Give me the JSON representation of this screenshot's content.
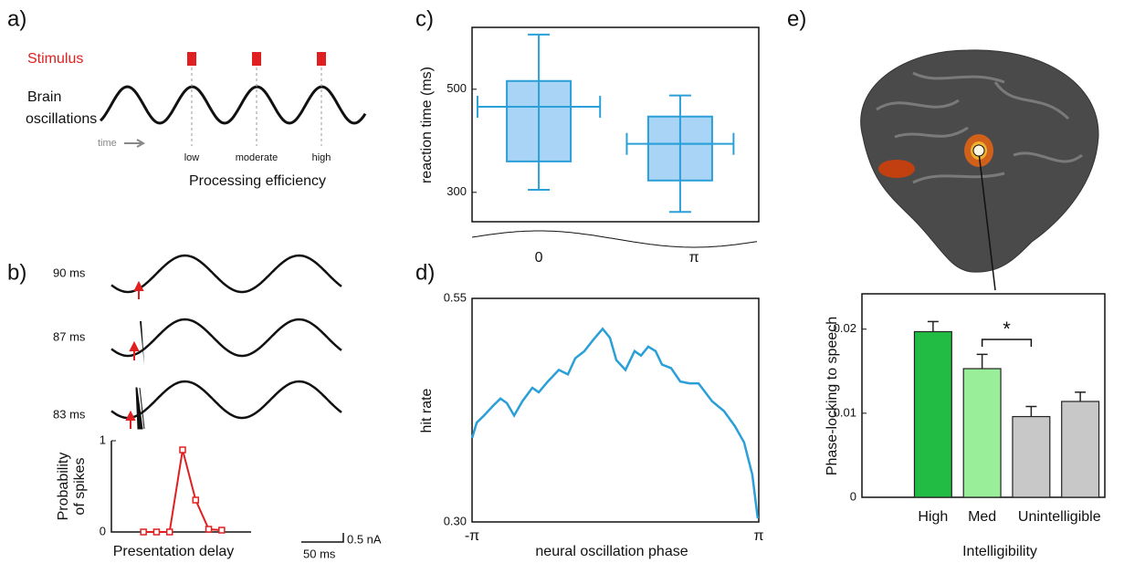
{
  "panel_labels": [
    "a)",
    "b)",
    "c)",
    "d)",
    "e)"
  ],
  "panel_a": {
    "stimulus": "Stimulus",
    "brain": "Brain",
    "oscillations": "oscillations",
    "time": "time",
    "levels": [
      "low",
      "moderate",
      "high"
    ],
    "xlabel": "Processing efficiency"
  },
  "panel_b": {
    "delays": [
      "90 ms",
      "87 ms",
      "83 ms"
    ],
    "scale_x": "50 ms",
    "scale_y": "0.5 nA"
  },
  "chart_data": [
    {
      "type": "line",
      "ylabel": [
        "Probability",
        "of spikes"
      ],
      "xlabel": "Presentation delay",
      "categories": [
        null,
        null,
        null,
        null,
        null,
        null,
        null
      ],
      "values": [
        0,
        0,
        0,
        0.9,
        0.35,
        0.03,
        0.02
      ],
      "ylim": [
        0,
        1
      ],
      "yticks": [
        0,
        1
      ],
      "color": "#e02020",
      "markers": true
    },
    {
      "type": "box",
      "ylabel": "reaction time (ms)",
      "ylim": [
        243,
        620
      ],
      "yticks": [
        300,
        500
      ],
      "xlim": [
        -1.35,
        4.45
      ],
      "xticks": [
        0,
        {
          "value": 3.14159,
          "label": "π"
        }
      ],
      "color": "#2a9fd8",
      "fill": "#a9d4f5",
      "boxes": [
        {
          "x": 0,
          "x_err": 1.24,
          "median": 466,
          "q1": 360,
          "q3": 516,
          "whislo": 305,
          "whishi": 606
        },
        {
          "x": 2.86,
          "x_err": 1.08,
          "median": 394,
          "q1": 323,
          "q3": 447,
          "whislo": 262,
          "whishi": 488
        }
      ]
    },
    {
      "type": "line",
      "ylabel": "hit rate",
      "xlabel": "neural oscillation phase",
      "color": "#2a9fd8",
      "xlim": [
        -3.14159,
        3.14159
      ],
      "xticks": [
        {
          "value": -3.14159,
          "label": "-π"
        },
        {
          "value": 3.14159,
          "label": "π"
        }
      ],
      "ylim": [
        0.3,
        0.55
      ],
      "yticks": [
        {
          "value": 0.3,
          "label": "0.30"
        },
        0.55
      ],
      "x": [
        -3.14,
        -3.04,
        -2.88,
        -2.68,
        -2.52,
        -2.38,
        -2.22,
        -2.04,
        -1.82,
        -1.68,
        -1.48,
        -1.24,
        -1.04,
        -0.88,
        -0.68,
        -0.48,
        -0.28,
        -0.12,
        0.02,
        0.22,
        0.42,
        0.56,
        0.72,
        0.88,
        1.02,
        1.22,
        1.42,
        1.62,
        1.82,
        2.12,
        2.38,
        2.62,
        2.82,
        3.0,
        3.1,
        3.12
      ],
      "values": [
        0.394,
        0.411,
        0.419,
        0.43,
        0.438,
        0.433,
        0.419,
        0.435,
        0.45,
        0.445,
        0.457,
        0.47,
        0.465,
        0.483,
        0.491,
        0.504,
        0.516,
        0.506,
        0.481,
        0.47,
        0.491,
        0.486,
        0.496,
        0.491,
        0.476,
        0.472,
        0.457,
        0.455,
        0.455,
        0.435,
        0.424,
        0.407,
        0.389,
        0.353,
        0.312,
        0.304
      ]
    },
    {
      "type": "bar",
      "ylabel": "Phase-locking to speech",
      "xlabel": "Intelligibility",
      "categories": [
        "High",
        "Med",
        null,
        null
      ],
      "group_label": "Unintelligible",
      "values": [
        0.0197,
        0.0153,
        0.0096,
        0.0114
      ],
      "errors": [
        0.0012,
        0.0017,
        0.0012,
        0.0011
      ],
      "colors": [
        "#22bb44",
        "#99ee99",
        "#c8c8c8",
        "#c8c8c8"
      ],
      "ylim": [
        0,
        0.0242
      ],
      "yticks": [
        0,
        0.01,
        0.02
      ],
      "annotation": "*"
    }
  ]
}
